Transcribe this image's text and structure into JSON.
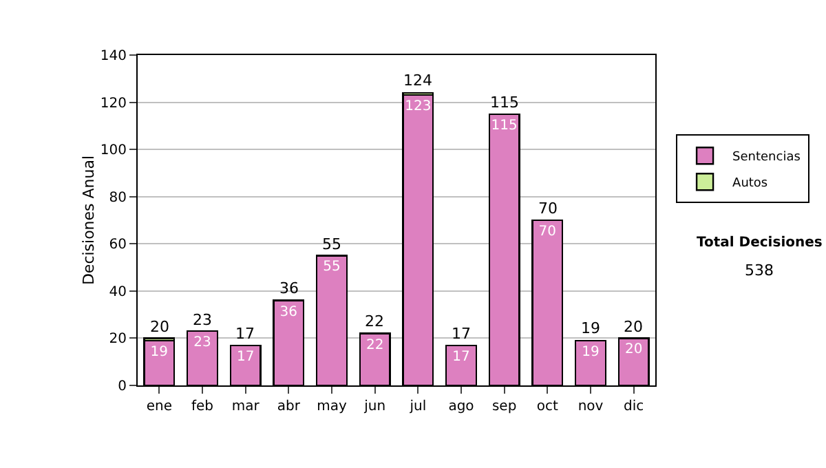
{
  "chart_data": {
    "type": "bar",
    "stacked": true,
    "ylabel": "Decisiones Anual",
    "categories": [
      "ene",
      "feb",
      "mar",
      "abr",
      "may",
      "jun",
      "jul",
      "ago",
      "sep",
      "oct",
      "nov",
      "dic"
    ],
    "series": [
      {
        "name": "Sentencias",
        "color": "#dd80c0",
        "values": [
          19,
          23,
          17,
          36,
          55,
          22,
          123,
          17,
          115,
          70,
          19,
          20
        ],
        "value_labels": [
          "19",
          "23",
          "17",
          "36",
          "55",
          "22",
          "123",
          "17",
          "115",
          "70",
          "19",
          "20"
        ]
      },
      {
        "name": "Autos",
        "color": "#ccee99",
        "values": [
          1,
          0,
          0,
          0,
          0,
          0,
          1,
          0,
          0,
          0,
          0,
          0
        ]
      }
    ],
    "totals": [
      "20",
      "23",
      "17",
      "36",
      "55",
      "22",
      "124",
      "17",
      "115",
      "70",
      "19",
      "20"
    ],
    "ylim": [
      0,
      140
    ],
    "yticks": [
      0,
      20,
      40,
      60,
      80,
      100,
      120,
      140
    ],
    "grid": "y",
    "legend": "top right",
    "annotations": [
      "Total Decisiones",
      "538"
    ]
  }
}
